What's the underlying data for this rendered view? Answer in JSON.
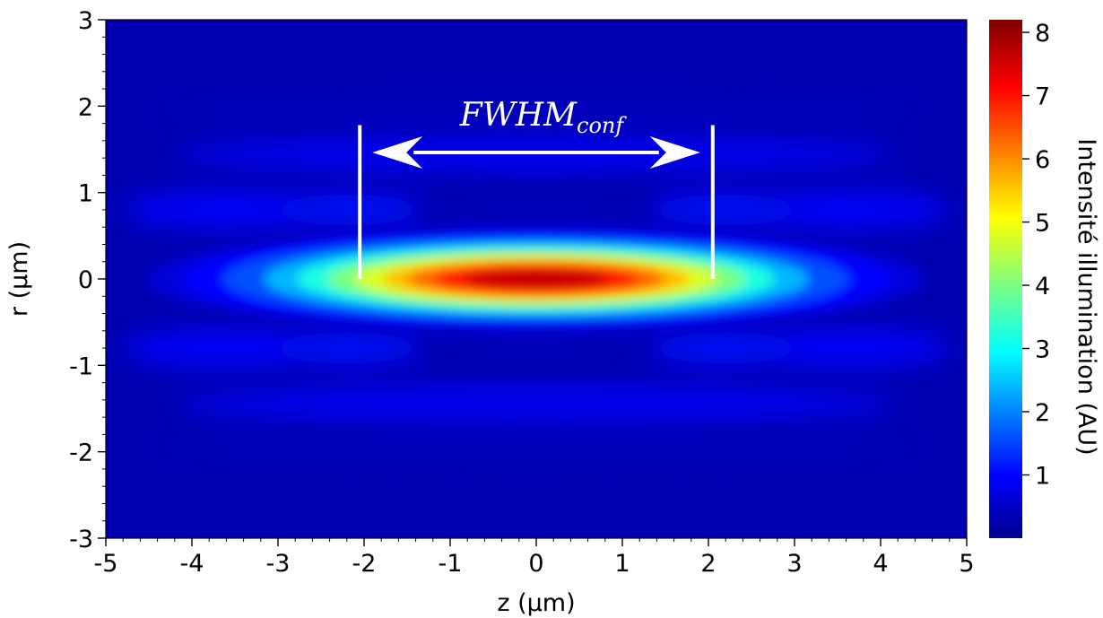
{
  "chart_data": {
    "type": "heatmap",
    "xlabel": "z (µm)",
    "ylabel": "r (µm)",
    "xlim": [
      -5,
      5
    ],
    "ylim": [
      -3,
      3
    ],
    "x_ticks": [
      "-5",
      "-4",
      "-3",
      "-2",
      "-1",
      "0",
      "1",
      "2",
      "3",
      "4",
      "5"
    ],
    "y_ticks": [
      "-3",
      "-2",
      "-1",
      "0",
      "1",
      "2",
      "3"
    ],
    "colormap": "jet",
    "colorbar": {
      "label": "Intensité illumination (AU)",
      "range": [
        0,
        8.2
      ],
      "ticks": [
        "1",
        "2",
        "3",
        "4",
        "5",
        "6",
        "7",
        "8"
      ]
    },
    "peak": {
      "z": 0,
      "r": 0,
      "value": 8.2
    },
    "spot_halfwidth_z": 1.8,
    "spot_halfwidth_r": 0.23,
    "background_value": 0.3,
    "annotation": {
      "text_main": "FWHM",
      "text_sub": "conf",
      "marker_z": [
        -2.05,
        2.05
      ],
      "marker_r_top": 1.78
    }
  }
}
